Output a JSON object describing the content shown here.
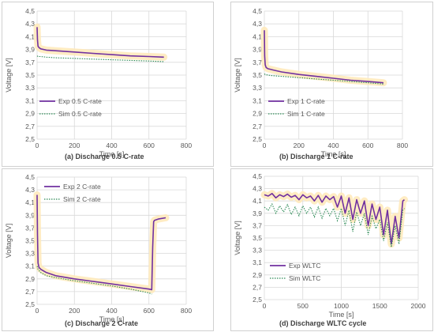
{
  "chart_data": [
    {
      "type": "line",
      "caption": "(a) Discharge 0.5 C-rate",
      "xlabel": "Time [s]",
      "ylabel": "Voltage [V]",
      "xlim": [
        0,
        800
      ],
      "ylim": [
        2.5,
        4.5
      ],
      "x_ticks": [
        "0",
        "200",
        "400",
        "600",
        "800"
      ],
      "y_ticks": [
        "2,5",
        "2,7",
        "2,9",
        "3,1",
        "3,3",
        "3,5",
        "3,7",
        "3,9",
        "4,1",
        "4,3",
        "4,5"
      ],
      "grid": true,
      "legend_position": "bottom-left",
      "series": [
        {
          "name": "Exp 0.5 C-rate",
          "color": "#7030A0",
          "style": "solid",
          "x": [
            0,
            2,
            5,
            10,
            20,
            50,
            100,
            200,
            300,
            400,
            500,
            600,
            680
          ],
          "y": [
            4.25,
            4.05,
            3.95,
            3.93,
            3.91,
            3.89,
            3.88,
            3.86,
            3.84,
            3.82,
            3.8,
            3.79,
            3.78
          ]
        },
        {
          "name": "Sim 0.5 C-rate",
          "color": "#2E8B57",
          "style": "dotted",
          "x": [
            0,
            5,
            20,
            50,
            100,
            200,
            300,
            400,
            500,
            600,
            680
          ],
          "y": [
            3.8,
            3.79,
            3.79,
            3.78,
            3.77,
            3.76,
            3.75,
            3.74,
            3.73,
            3.72,
            3.71
          ]
        }
      ]
    },
    {
      "type": "line",
      "caption": "(b) Discharge 1 C-rate",
      "xlabel": "Time [s]",
      "ylabel": "Voltage [V]",
      "xlim": [
        0,
        800
      ],
      "ylim": [
        2.5,
        4.5
      ],
      "x_ticks": [
        "0",
        "200",
        "400",
        "600",
        "800"
      ],
      "y_ticks": [
        "2,5",
        "2,7",
        "2,9",
        "3,1",
        "3,3",
        "3,5",
        "3,7",
        "3,9",
        "4,1",
        "4,3",
        "4,5"
      ],
      "grid": true,
      "legend_position": "bottom-left",
      "series": [
        {
          "name": "Exp 1 C-rate",
          "color": "#7030A0",
          "style": "solid",
          "x": [
            0,
            2,
            5,
            10,
            20,
            50,
            100,
            200,
            300,
            400,
            500,
            600,
            690
          ],
          "y": [
            4.2,
            3.8,
            3.66,
            3.62,
            3.6,
            3.58,
            3.55,
            3.51,
            3.48,
            3.45,
            3.42,
            3.4,
            3.38
          ]
        },
        {
          "name": "Sim 1 C-rate",
          "color": "#2E8B57",
          "style": "dotted",
          "x": [
            0,
            5,
            20,
            50,
            100,
            200,
            300,
            400,
            500,
            600,
            690
          ],
          "y": [
            3.52,
            3.51,
            3.5,
            3.49,
            3.48,
            3.46,
            3.44,
            3.42,
            3.4,
            3.38,
            3.36
          ]
        }
      ]
    },
    {
      "type": "line",
      "caption": "(c) Discharge  2 C-rate",
      "xlabel": "Time [s]",
      "ylabel": "Voltage [V]",
      "xlim": [
        0,
        800
      ],
      "ylim": [
        2.5,
        4.5
      ],
      "x_ticks": [
        "0",
        "200",
        "400",
        "600",
        "800"
      ],
      "y_ticks": [
        "2,5",
        "2,7",
        "2,9",
        "3,1",
        "3,3",
        "3,5",
        "3,7",
        "3,9",
        "4,1",
        "4,3",
        "4,5"
      ],
      "grid": true,
      "legend_position": "top-left",
      "series": [
        {
          "name": "Exp 2 C-rate",
          "color": "#7030A0",
          "style": "solid",
          "x": [
            0,
            2,
            5,
            10,
            20,
            50,
            100,
            200,
            300,
            400,
            500,
            600,
            615,
            620,
            625,
            630,
            650,
            690
          ],
          "y": [
            4.22,
            3.6,
            3.15,
            3.08,
            3.05,
            3.0,
            2.95,
            2.9,
            2.86,
            2.82,
            2.78,
            2.74,
            2.73,
            3.4,
            3.8,
            3.82,
            3.84,
            3.86
          ]
        },
        {
          "name": "Sim 2 C-rate",
          "color": "#2E8B57",
          "style": "dotted",
          "x": [
            0,
            5,
            20,
            50,
            100,
            200,
            300,
            400,
            500,
            600,
            615
          ],
          "y": [
            3.1,
            3.05,
            3.0,
            2.95,
            2.92,
            2.87,
            2.83,
            2.79,
            2.74,
            2.68,
            2.66
          ]
        }
      ]
    },
    {
      "type": "line",
      "caption": "(d) Discharge WLTC cycle",
      "xlabel": "Time [s]",
      "ylabel": "Voltage [V]",
      "xlim": [
        0,
        2000
      ],
      "ylim": [
        2.5,
        4.5
      ],
      "x_ticks": [
        "0",
        "500",
        "1000",
        "1500",
        "2000"
      ],
      "y_ticks": [
        "2,5",
        "2,7",
        "2,9",
        "3,1",
        "3,3",
        "3,5",
        "3,7",
        "3,9",
        "4,1",
        "4,3",
        "4,5"
      ],
      "grid": true,
      "legend_position": "bottom-left",
      "series": [
        {
          "name": "Exp WLTC",
          "color": "#7030A0",
          "style": "solid",
          "x": [
            0,
            50,
            100,
            150,
            200,
            250,
            300,
            350,
            400,
            450,
            500,
            550,
            600,
            650,
            700,
            750,
            800,
            850,
            900,
            950,
            1000,
            1050,
            1100,
            1150,
            1200,
            1250,
            1300,
            1350,
            1400,
            1450,
            1500,
            1550,
            1600,
            1650,
            1700,
            1750,
            1800,
            1820
          ],
          "y": [
            4.2,
            4.18,
            4.22,
            4.15,
            4.2,
            4.17,
            4.21,
            4.16,
            4.19,
            4.12,
            4.2,
            4.15,
            4.18,
            4.1,
            4.19,
            4.08,
            4.18,
            4.12,
            4.17,
            4.0,
            4.18,
            3.9,
            4.15,
            3.8,
            4.12,
            3.9,
            4.1,
            3.7,
            4.05,
            3.8,
            4.0,
            3.55,
            3.95,
            3.4,
            3.85,
            3.5,
            4.1,
            4.12
          ]
        },
        {
          "name": "Sim WLTC",
          "color": "#2E8B57",
          "style": "dotted",
          "x": [
            0,
            50,
            100,
            150,
            200,
            250,
            300,
            350,
            400,
            450,
            500,
            550,
            600,
            650,
            700,
            750,
            800,
            850,
            900,
            950,
            1000,
            1050,
            1100,
            1150,
            1200,
            1250,
            1300,
            1350,
            1400,
            1450,
            1500,
            1550,
            1600,
            1650,
            1700,
            1750,
            1800,
            1820
          ],
          "y": [
            4.0,
            3.95,
            4.05,
            3.9,
            4.02,
            3.92,
            4.04,
            3.88,
            4.0,
            3.86,
            4.02,
            3.9,
            4.0,
            3.84,
            4.0,
            3.82,
            3.98,
            3.86,
            3.98,
            3.78,
            3.98,
            3.7,
            3.95,
            3.6,
            3.92,
            3.7,
            3.9,
            3.55,
            3.85,
            3.65,
            3.8,
            3.45,
            3.75,
            3.35,
            3.7,
            3.4,
            3.95,
            3.98
          ]
        }
      ]
    }
  ]
}
